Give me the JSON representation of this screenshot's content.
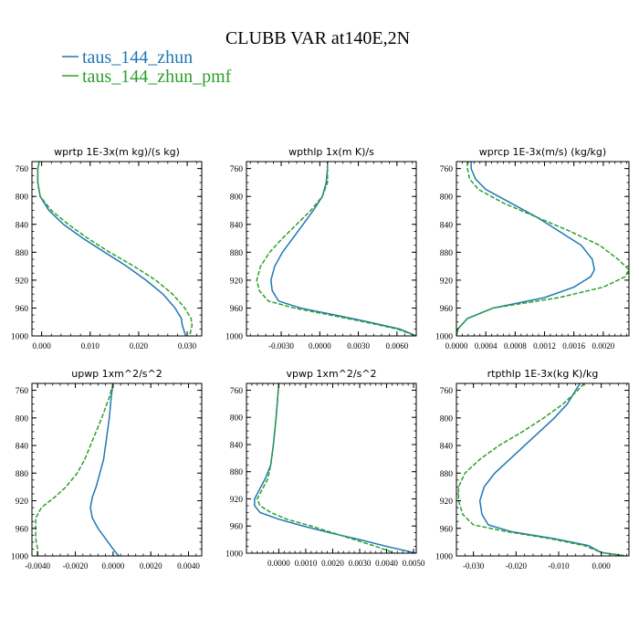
{
  "figure": {
    "title": "CLUBB VAR at140E,2N",
    "legend": [
      {
        "name": "taus_144_zhun",
        "color": "#1f77b4",
        "dash": "solid"
      },
      {
        "name": "taus_144_zhun_pmf",
        "color": "#2ca02c",
        "dash": "dashed"
      }
    ]
  },
  "chart_data": [
    {
      "type": "line",
      "title": "wprtp  1E-3x(m kg)/(s kg)",
      "xlim": [
        -0.002,
        0.033
      ],
      "ylim": [
        1000,
        750
      ],
      "xticks": [
        0.0,
        0.01,
        0.02,
        0.03
      ],
      "xticklabels": [
        "0.000",
        "0.010",
        "0.020",
        "0.030"
      ],
      "yticks": [
        760,
        800,
        840,
        880,
        920,
        960,
        1000
      ],
      "yticklabels": [
        "760",
        "800",
        "840",
        "880",
        "920",
        "960",
        "1000"
      ],
      "y": [
        750,
        760,
        780,
        800,
        820,
        840,
        860,
        880,
        900,
        920,
        940,
        960,
        975,
        985,
        1000
      ],
      "series": [
        {
          "name": "taus_144_zhun",
          "x": [
            -0.0005,
            -0.0008,
            -0.0008,
            -0.0003,
            0.0015,
            0.0045,
            0.0085,
            0.013,
            0.0175,
            0.0215,
            0.025,
            0.0275,
            0.0288,
            0.029,
            0.0297
          ]
        },
        {
          "name": "taus_144_zhun_pmf",
          "x": [
            -0.0005,
            -0.0008,
            -0.0008,
            -0.0003,
            0.002,
            0.0055,
            0.0095,
            0.014,
            0.019,
            0.0235,
            0.027,
            0.0295,
            0.0308,
            0.031,
            0.0305
          ]
        }
      ]
    },
    {
      "type": "line",
      "title": "wpthlp  1x(m K)/s",
      "xlim": [
        -0.0057,
        0.0075
      ],
      "ylim": [
        1000,
        750
      ],
      "xticks": [
        -0.003,
        0.0,
        0.003,
        0.006
      ],
      "xticklabels": [
        "-0.0030",
        "0.0000",
        "0.0030",
        "0.0060"
      ],
      "yticks": [
        760,
        800,
        840,
        880,
        920,
        960,
        1000
      ],
      "yticklabels": [
        "760",
        "800",
        "840",
        "880",
        "920",
        "960",
        "1000"
      ],
      "y": [
        750,
        760,
        780,
        800,
        820,
        840,
        860,
        880,
        900,
        920,
        935,
        950,
        960,
        970,
        980,
        990,
        1000
      ],
      "series": [
        {
          "name": "taus_144_zhun",
          "x": [
            0.0006,
            0.0006,
            0.0005,
            0.0002,
            -0.0005,
            -0.0013,
            -0.0021,
            -0.0029,
            -0.0035,
            -0.0038,
            -0.0037,
            -0.0032,
            -0.0015,
            0.0012,
            0.0038,
            0.0062,
            0.0075
          ]
        },
        {
          "name": "taus_144_zhun_pmf",
          "x": [
            0.0006,
            0.0006,
            0.0006,
            0.0002,
            -0.0007,
            -0.0018,
            -0.0029,
            -0.0039,
            -0.0046,
            -0.0049,
            -0.0047,
            -0.004,
            -0.002,
            0.0008,
            0.0035,
            0.006,
            0.0075
          ]
        }
      ]
    },
    {
      "type": "line",
      "title": "wprcp  1E-3x(m/s) (kg/kg)",
      "xlim": [
        0.0,
        0.00235
      ],
      "ylim": [
        1000,
        750
      ],
      "xticks": [
        0.0,
        0.0004,
        0.0008,
        0.0012,
        0.0016,
        0.002
      ],
      "xticklabels": [
        "0.0000",
        "0.0004",
        "0.0008",
        "0.0012",
        "0.0016",
        "0.0020"
      ],
      "yticks": [
        760,
        800,
        840,
        880,
        920,
        960,
        1000
      ],
      "yticklabels": [
        "760",
        "800",
        "840",
        "880",
        "920",
        "960",
        "1000"
      ],
      "y": [
        750,
        760,
        775,
        790,
        810,
        830,
        850,
        870,
        890,
        905,
        915,
        930,
        945,
        960,
        975,
        990,
        1000
      ],
      "series": [
        {
          "name": "taus_144_zhun",
          "x": [
            0.0002,
            0.0002,
            0.00026,
            0.0004,
            0.00075,
            0.0011,
            0.0014,
            0.0017,
            0.00185,
            0.00188,
            0.00183,
            0.0016,
            0.0012,
            0.0005,
            0.00015,
            2e-05,
            0.0
          ]
        },
        {
          "name": "taus_144_zhun_pmf",
          "x": [
            0.00015,
            0.00015,
            0.00018,
            0.0003,
            0.00065,
            0.0011,
            0.00155,
            0.00195,
            0.0022,
            0.00235,
            0.0023,
            0.002,
            0.0014,
            0.0005,
            0.00015,
            2e-05,
            0.0
          ]
        }
      ]
    },
    {
      "type": "line",
      "title": "upwp  1xm^2/s^2",
      "xlim": [
        -0.0043,
        0.0047
      ],
      "ylim": [
        1000,
        750
      ],
      "xticks": [
        -0.004,
        -0.002,
        0.0,
        0.002,
        0.004
      ],
      "xticklabels": [
        "-0.0040",
        "-0.0020",
        "0.0000",
        "0.0020",
        "0.0040"
      ],
      "yticks": [
        760,
        800,
        840,
        880,
        920,
        960,
        1000
      ],
      "yticklabels": [
        "760",
        "800",
        "840",
        "880",
        "920",
        "960",
        "1000"
      ],
      "y": [
        750,
        770,
        800,
        820,
        840,
        860,
        880,
        900,
        915,
        930,
        945,
        960,
        975,
        990,
        1000
      ],
      "series": [
        {
          "name": "taus_144_zhun",
          "x": [
            0.0,
            -0.0001,
            -0.0002,
            -0.0003,
            -0.0004,
            -0.0005,
            -0.0007,
            -0.0009,
            -0.0011,
            -0.0012,
            -0.0011,
            -0.0008,
            -0.0004,
            0.0,
            0.0003
          ]
        },
        {
          "name": "taus_144_zhun_pmf",
          "x": [
            0.0,
            -0.0002,
            -0.0006,
            -0.0009,
            -0.0012,
            -0.0015,
            -0.0019,
            -0.0025,
            -0.0031,
            -0.0038,
            -0.0041,
            -0.0041,
            -0.0041,
            -0.004,
            -0.004
          ]
        }
      ]
    },
    {
      "type": "line",
      "title": "vpwp  1xm^2/s^2",
      "xlim": [
        -0.0012,
        0.0051
      ],
      "ylim": [
        1000,
        750
      ],
      "xticks": [
        0.0,
        0.001,
        0.002,
        0.003,
        0.004,
        0.005
      ],
      "xticklabels": [
        "0.0000",
        "0.0010",
        "0.0020",
        "0.0030",
        "0.0040",
        "0.0050"
      ],
      "yticks": [
        760,
        800,
        840,
        880,
        920,
        960,
        1000
      ],
      "yticklabels": [
        "760",
        "800",
        "840",
        "880",
        "920",
        "960",
        "1000"
      ],
      "y": [
        750,
        800,
        840,
        870,
        890,
        905,
        920,
        930,
        940,
        950,
        960,
        970,
        980,
        990,
        1000
      ],
      "series": [
        {
          "name": "taus_144_zhun",
          "x": [
            0.0,
            -0.0001,
            -0.0002,
            -0.0003,
            -0.0005,
            -0.0007,
            -0.0009,
            -0.0009,
            -0.0007,
            0.0,
            0.0009,
            0.0019,
            0.003,
            0.004,
            0.0051
          ]
        },
        {
          "name": "taus_144_zhun_pmf",
          "x": [
            0.0,
            -0.0001,
            -0.0002,
            -0.0003,
            -0.0004,
            -0.0006,
            -0.0008,
            -0.0007,
            -0.0003,
            0.0003,
            0.0012,
            0.002,
            0.0028,
            0.0036,
            0.0043
          ]
        }
      ]
    },
    {
      "type": "line",
      "title": "rtpthlp  1E-3x(kg K)/kg",
      "xlim": [
        -0.034,
        0.0065
      ],
      "ylim": [
        1000,
        750
      ],
      "xticks": [
        -0.03,
        -0.02,
        -0.01,
        0.0
      ],
      "xticklabels": [
        "-0.030",
        "-0.020",
        "-0.010",
        "0.000"
      ],
      "yticks": [
        760,
        800,
        840,
        880,
        920,
        960,
        1000
      ],
      "yticklabels": [
        "760",
        "800",
        "840",
        "880",
        "920",
        "960",
        "1000"
      ],
      "y": [
        750,
        760,
        780,
        800,
        820,
        840,
        860,
        880,
        900,
        920,
        940,
        955,
        965,
        975,
        985,
        995,
        1000
      ],
      "series": [
        {
          "name": "taus_144_zhun",
          "x": [
            -0.005,
            -0.006,
            -0.008,
            -0.011,
            -0.0145,
            -0.018,
            -0.0215,
            -0.025,
            -0.0275,
            -0.0285,
            -0.028,
            -0.0265,
            -0.021,
            -0.011,
            -0.003,
            0.0,
            0.0055
          ]
        },
        {
          "name": "taus_144_zhun_pmf",
          "x": [
            -0.004,
            -0.0055,
            -0.009,
            -0.0135,
            -0.0185,
            -0.024,
            -0.0285,
            -0.032,
            -0.0335,
            -0.0335,
            -0.0325,
            -0.03,
            -0.022,
            -0.012,
            -0.004,
            0.0,
            0.006
          ]
        }
      ]
    }
  ]
}
